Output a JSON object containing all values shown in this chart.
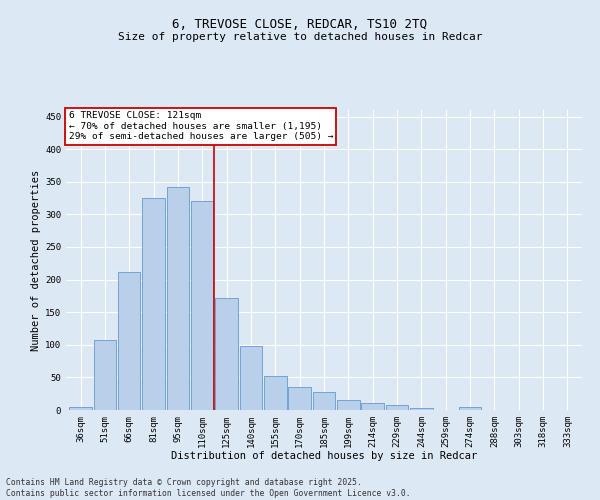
{
  "title_line1": "6, TREVOSE CLOSE, REDCAR, TS10 2TQ",
  "title_line2": "Size of property relative to detached houses in Redcar",
  "categories": [
    "36sqm",
    "51sqm",
    "66sqm",
    "81sqm",
    "95sqm",
    "110sqm",
    "125sqm",
    "140sqm",
    "155sqm",
    "170sqm",
    "185sqm",
    "199sqm",
    "214sqm",
    "229sqm",
    "244sqm",
    "259sqm",
    "274sqm",
    "288sqm",
    "303sqm",
    "318sqm",
    "333sqm"
  ],
  "values": [
    5,
    107,
    212,
    325,
    342,
    320,
    172,
    98,
    52,
    36,
    28,
    15,
    10,
    8,
    3,
    0,
    5,
    0,
    0,
    0,
    0
  ],
  "bar_color": "#b8d0ea",
  "bar_edge_color": "#6699cc",
  "bar_edge_width": 0.6,
  "vline_index": 5.5,
  "vline_color": "#cc0000",
  "annotation_line1": "6 TREVOSE CLOSE: 121sqm",
  "annotation_line2": "← 70% of detached houses are smaller (1,195)",
  "annotation_line3": "29% of semi-detached houses are larger (505) →",
  "annotation_box_facecolor": "#ffffff",
  "annotation_box_edgecolor": "#cc0000",
  "xlabel": "Distribution of detached houses by size in Redcar",
  "ylabel": "Number of detached properties",
  "ylim": [
    0,
    460
  ],
  "yticks": [
    0,
    50,
    100,
    150,
    200,
    250,
    300,
    350,
    400,
    450
  ],
  "background_color": "#dde8f5",
  "grid_color": "#ffffff",
  "title_fontsize": 9,
  "subtitle_fontsize": 8,
  "tick_fontsize": 6.5,
  "axis_label_fontsize": 7.5,
  "footer_line1": "Contains HM Land Registry data © Crown copyright and database right 2025.",
  "footer_line2": "Contains public sector information licensed under the Open Government Licence v3.0."
}
